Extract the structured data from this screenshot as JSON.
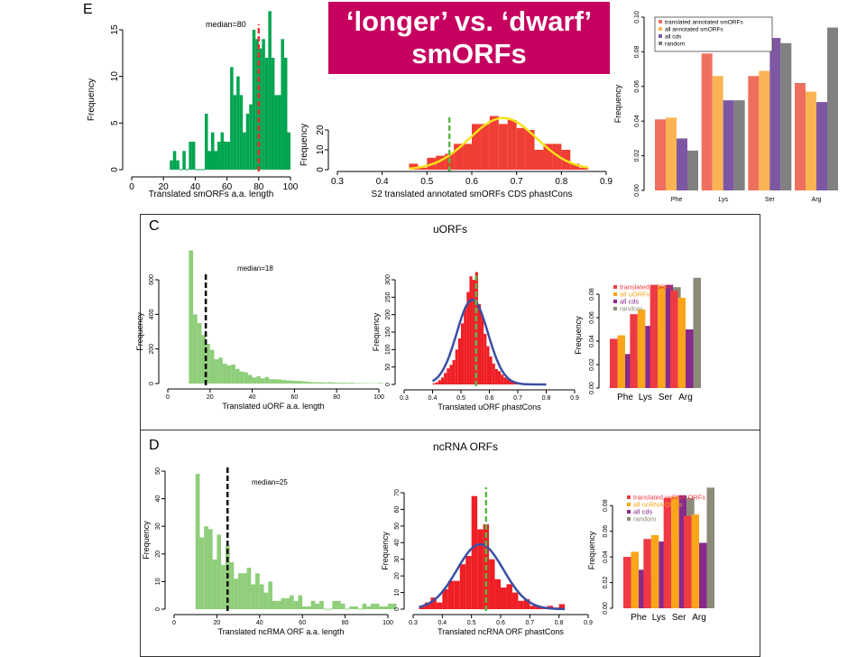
{
  "slide": {
    "title_line1": "‘longer’ vs. ‘dwarf’",
    "title_line2": "smORFs",
    "title_bg_color": "#c5005f"
  },
  "panels": {
    "E": {
      "letter": "E"
    },
    "C": {
      "letter": "C",
      "heading": "uORFs"
    },
    "D": {
      "letter": "D",
      "heading": "ncRNA ORFs"
    }
  },
  "chart_data": [
    {
      "id": "E_length",
      "type": "bar",
      "subtype": "histogram",
      "title": "",
      "xlabel": "Translated smORFs a.a. length",
      "ylabel": "Frequency",
      "xlim": [
        0,
        100
      ],
      "ylim": [
        0,
        15
      ],
      "xticks": [
        0,
        20,
        40,
        60,
        80,
        100
      ],
      "yticks": [
        0,
        5,
        10,
        15
      ],
      "bin_width": 2,
      "bin_start": 24,
      "values": [
        1,
        2,
        1,
        0,
        2,
        0,
        3,
        3,
        0,
        0,
        0,
        6,
        2,
        4,
        2,
        3,
        4,
        3,
        3,
        11,
        8,
        10,
        8,
        4,
        6,
        7,
        15,
        14,
        13,
        14,
        12,
        17,
        12,
        8,
        8,
        14,
        12,
        4
      ],
      "color": "#00a550",
      "median": {
        "value": 80,
        "label": "median=80",
        "color": "#e8312f"
      }
    },
    {
      "id": "E_phastcons",
      "type": "bar",
      "subtype": "histogram",
      "xlabel": "S2 translated annotated smORFs CDS phastCons",
      "ylabel": "Frequency",
      "xlim": [
        0.3,
        0.9
      ],
      "ylim": [
        0,
        25
      ],
      "xticks": [
        0.3,
        0.4,
        0.5,
        0.6,
        0.7,
        0.8,
        0.9
      ],
      "yticks": [
        0,
        10,
        20
      ],
      "bin_width": 0.02,
      "bin_start": 0.46,
      "values": [
        3,
        1,
        6,
        7,
        8,
        13,
        13,
        23,
        23,
        27,
        23,
        25,
        21,
        20,
        10,
        13,
        13,
        10,
        3,
        1
      ],
      "color": "#ef3e33",
      "fit_curve": {
        "mean": 0.67,
        "sd": 0.075,
        "peak": 26,
        "color": "#f5e11b"
      },
      "median": {
        "value": 0.55,
        "color": "#5ab848"
      }
    },
    {
      "id": "E_aa",
      "type": "bar",
      "ylabel": "Frequency",
      "ylim": [
        0,
        0.1
      ],
      "yticks": [
        0.0,
        0.02,
        0.04,
        0.06,
        0.08,
        0.1
      ],
      "categories": [
        "Phe",
        "Lys",
        "Ser",
        "Arg"
      ],
      "legend_position": "top-left",
      "series": [
        {
          "name": "translated annotated smORFs",
          "color": "#ef6f5f",
          "values": [
            0.041,
            0.079,
            0.066,
            0.062
          ]
        },
        {
          "name": "all annotated smORFs",
          "color": "#fbb454",
          "values": [
            0.042,
            0.066,
            0.069,
            0.057
          ]
        },
        {
          "name": "all cds",
          "color": "#7e57a3",
          "values": [
            0.03,
            0.052,
            0.088,
            0.051
          ]
        },
        {
          "name": "random",
          "color": "#808080",
          "values": [
            0.023,
            0.052,
            0.085,
            0.094
          ]
        }
      ]
    },
    {
      "id": "C_length",
      "type": "bar",
      "subtype": "histogram",
      "xlabel": "Translated uORF a.a. length",
      "ylabel": "Frequency",
      "xlim": [
        0,
        100
      ],
      "ylim": [
        0,
        600
      ],
      "xticks": [
        0,
        20,
        40,
        60,
        80,
        100
      ],
      "yticks": [
        0,
        200,
        400,
        600
      ],
      "bin_width": 2,
      "bin_start": 10,
      "values": [
        770,
        400,
        350,
        280,
        230,
        195,
        140,
        150,
        115,
        105,
        110,
        85,
        70,
        65,
        50,
        35,
        42,
        30,
        38,
        25,
        25,
        24,
        20,
        18,
        17,
        15,
        15,
        12,
        10,
        8,
        8,
        7,
        6,
        8,
        6,
        5,
        5,
        4,
        5,
        3,
        3,
        2,
        2,
        2,
        2,
        3
      ],
      "color": "#8fce7a",
      "median": {
        "value": 18,
        "label": "median=18",
        "color": "#000000"
      }
    },
    {
      "id": "C_phastcons",
      "type": "bar",
      "subtype": "histogram",
      "xlabel": "Translated uORF phastCons",
      "ylabel": "Frequency",
      "xlim": [
        0.3,
        0.9
      ],
      "ylim": [
        0,
        300
      ],
      "xticks": [
        0.3,
        0.4,
        0.5,
        0.6,
        0.7,
        0.8,
        0.9
      ],
      "yticks": [
        0,
        50,
        100,
        150,
        200,
        250,
        300
      ],
      "bin_width": 0.01,
      "bin_start": 0.4,
      "values": [
        3,
        6,
        12,
        20,
        33,
        46,
        56,
        70,
        100,
        132,
        175,
        220,
        265,
        310,
        300,
        322,
        230,
        200,
        145,
        110,
        80,
        60,
        44,
        38,
        28,
        20,
        16,
        12,
        9,
        6,
        4,
        3,
        2,
        2,
        1,
        1,
        1,
        1,
        1,
        1
      ],
      "color": "#ee1f25",
      "fit_curve": {
        "mean": 0.54,
        "sd": 0.055,
        "peak": 243,
        "color": "#3b4fa3"
      },
      "median": {
        "value": 0.553,
        "color": "#5ab848"
      }
    },
    {
      "id": "C_aa",
      "type": "bar",
      "ylabel": "Frequency",
      "ylim": [
        0,
        0.09
      ],
      "yticks": [
        0.0,
        0.02,
        0.04,
        0.06,
        0.08
      ],
      "categories": [
        "Phe",
        "Lys",
        "Ser",
        "Arg"
      ],
      "legend_position": "top-left",
      "series": [
        {
          "name": "translated uORFs",
          "color": "#ee3a43",
          "values": [
            0.042,
            0.063,
            0.088,
            0.083
          ]
        },
        {
          "name": "all uORFs",
          "color": "#f9a51b",
          "values": [
            0.045,
            0.067,
            0.087,
            0.077
          ]
        },
        {
          "name": "all cds",
          "color": "#872a8c",
          "values": [
            0.029,
            0.053,
            0.088,
            0.05
          ]
        },
        {
          "name": "random",
          "color": "#8c8a78",
          "values": [
            0.023,
            0.052,
            0.086,
            0.094
          ]
        }
      ]
    },
    {
      "id": "D_length",
      "type": "bar",
      "subtype": "histogram",
      "xlabel": "Translated ncRMA ORF a.a. length",
      "ylabel": "Frequency",
      "xlim": [
        0,
        100
      ],
      "ylim": [
        0,
        50
      ],
      "xticks": [
        0,
        20,
        40,
        60,
        80,
        100
      ],
      "yticks": [
        0,
        10,
        20,
        30,
        40,
        50
      ],
      "bin_width": 2,
      "bin_start": 10,
      "values": [
        49,
        26,
        30,
        29,
        18,
        27,
        16,
        23,
        17,
        11,
        13,
        13,
        15,
        9,
        13,
        9,
        6,
        10,
        3,
        3,
        4,
        4,
        5,
        3,
        5,
        1,
        1,
        3,
        2,
        3,
        0,
        0,
        3,
        3,
        2,
        0,
        1,
        1,
        0,
        2,
        1,
        2,
        2,
        1,
        1,
        2,
        2
      ],
      "color": "#8fce7a",
      "median": {
        "value": 25,
        "label": "median=25",
        "color": "#000000"
      }
    },
    {
      "id": "D_phastcons",
      "type": "bar",
      "subtype": "histogram",
      "xlabel": "Translated ncRNA ORF phastCons",
      "ylabel": "Frequency",
      "xlim": [
        0.3,
        0.9
      ],
      "ylim": [
        0,
        70
      ],
      "xticks": [
        0.3,
        0.4,
        0.5,
        0.6,
        0.7,
        0.8,
        0.9
      ],
      "yticks": [
        0,
        10,
        20,
        30,
        40,
        50,
        60,
        70
      ],
      "bin_width": 0.02,
      "bin_start": 0.32,
      "values": [
        2,
        4,
        7,
        4,
        12,
        17,
        17,
        27,
        32,
        68,
        48,
        51,
        30,
        18,
        13,
        15,
        10,
        5,
        6,
        2,
        2,
        1,
        2,
        1,
        3
      ],
      "color": "#ee1f25",
      "fit_curve": {
        "mean": 0.53,
        "sd": 0.08,
        "peak": 39,
        "color": "#3b4fa3"
      },
      "median": {
        "value": 0.55,
        "color": "#5ab848"
      }
    },
    {
      "id": "D_aa",
      "type": "bar",
      "ylabel": "Frequency",
      "ylim": [
        0,
        0.09
      ],
      "yticks": [
        0.0,
        0.02,
        0.04,
        0.06,
        0.08
      ],
      "categories": [
        "Phe",
        "Lys",
        "Ser",
        "Arg"
      ],
      "legend_position": "top-left",
      "series": [
        {
          "name": "translated ncRNA ORFs",
          "color": "#ee3a43",
          "values": [
            0.04,
            0.054,
            0.086,
            0.072
          ]
        },
        {
          "name": "all ncRNA ORFs",
          "color": "#f9a51b",
          "values": [
            0.044,
            0.057,
            0.087,
            0.073
          ]
        },
        {
          "name": "all cds",
          "color": "#872a8c",
          "values": [
            0.03,
            0.052,
            0.088,
            0.051
          ]
        },
        {
          "name": "random",
          "color": "#8c8a78",
          "values": [
            0.023,
            0.052,
            0.086,
            0.094
          ]
        }
      ]
    }
  ]
}
